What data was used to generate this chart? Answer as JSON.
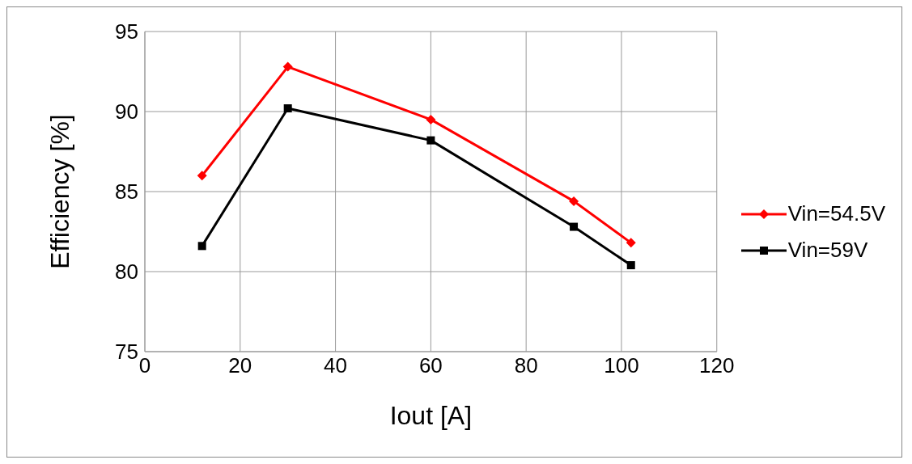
{
  "chart_data": {
    "type": "line",
    "xlabel": "Iout [A]",
    "ylabel": "Efficiency [%]",
    "xlim": [
      0,
      120
    ],
    "xticks": [
      0,
      20,
      40,
      60,
      80,
      100,
      120
    ],
    "ylim": [
      75,
      95
    ],
    "yticks": [
      75,
      80,
      85,
      90,
      95
    ],
    "grid": true,
    "legend": "right",
    "series": [
      {
        "name": "Vin=54.5V",
        "color": "#ff0000",
        "marker": "diamond",
        "x": [
          12,
          30,
          60,
          90,
          102
        ],
        "values": [
          86.0,
          92.8,
          89.5,
          84.4,
          81.8
        ]
      },
      {
        "name": "Vin=59V",
        "color": "#000000",
        "marker": "square",
        "x": [
          12,
          30,
          60,
          90,
          102
        ],
        "values": [
          81.6,
          90.2,
          88.2,
          82.8,
          80.4
        ]
      }
    ]
  }
}
